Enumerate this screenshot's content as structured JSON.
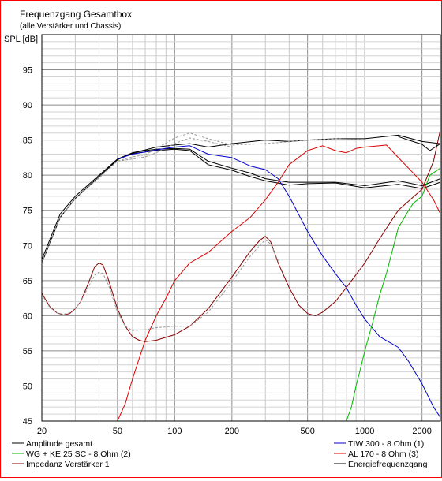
{
  "chart_data": {
    "type": "line",
    "title": "Frequenzgang Gesamtbox",
    "subtitle": "(alle Verstärker und Chassis)",
    "ylabel": "SPL [dB]",
    "xlabel": "",
    "x_scale": "log",
    "xlim": [
      20,
      2500
    ],
    "ylim": [
      45,
      100
    ],
    "x_ticks": [
      20,
      50,
      100,
      200,
      500,
      1000,
      2000
    ],
    "x_tick_labels": [
      "20",
      "50",
      "100",
      "200",
      "500",
      "1000",
      "2000"
    ],
    "y_ticks": [
      45,
      50,
      55,
      60,
      65,
      70,
      75,
      80,
      85,
      90,
      95
    ],
    "y_tick_labels": [
      "45",
      "50",
      "55",
      "60",
      "65",
      "70",
      "75",
      "80",
      "85",
      "90",
      "95"
    ],
    "grid": true,
    "legend_position": "bottom",
    "series": [
      {
        "name": "Amplitude gesamt",
        "color": "#000000",
        "dashed": false,
        "x": [
          20,
          25,
          30,
          40,
          50,
          60,
          70,
          80,
          100,
          120,
          150,
          200,
          300,
          400,
          500,
          700,
          1000,
          1500,
          2000,
          2500
        ],
        "y": [
          68,
          74.5,
          77,
          80,
          82.3,
          83.2,
          83.6,
          84,
          84.3,
          84.5,
          84,
          84.5,
          85,
          84.8,
          85,
          85.2,
          85.2,
          85.7,
          84.8,
          84.5
        ]
      },
      {
        "name": "Amplitude gesamt",
        "color": "#000000",
        "dashed": false,
        "x": [
          20,
          25,
          30,
          40,
          50,
          60,
          70,
          80,
          100,
          120,
          150,
          200,
          250,
          300,
          400,
          500,
          700,
          1000,
          1500,
          2000,
          2500
        ],
        "y": [
          67.5,
          74,
          76.7,
          79.8,
          82.2,
          83.2,
          83.5,
          83.7,
          83.8,
          83.7,
          82,
          81,
          80.3,
          79.5,
          79,
          79,
          79,
          78.5,
          79.2,
          78.5,
          79.5
        ]
      },
      {
        "name": "Amplitude gesamt",
        "color": "#000000",
        "dashed": false,
        "x": [
          20,
          25,
          30,
          40,
          50,
          60,
          70,
          80,
          100,
          120,
          150,
          200,
          250,
          300,
          400,
          500,
          700,
          1000,
          1500,
          2000,
          2500
        ],
        "y": [
          67.5,
          74,
          76.7,
          79.8,
          82.2,
          83.1,
          83.3,
          83.5,
          83.7,
          83.5,
          81.5,
          80.7,
          79.8,
          79.2,
          78.6,
          78.8,
          78.9,
          78.2,
          78.7,
          78.1,
          79
        ]
      },
      {
        "name": "Amplitude gesamt",
        "color": "#999999",
        "dashed": true,
        "x": [
          20,
          25,
          30,
          40,
          50,
          60,
          70,
          80,
          100,
          120,
          150,
          200,
          300,
          500,
          700,
          1000
        ],
        "y": [
          67.5,
          74,
          76.7,
          79.7,
          82,
          82.6,
          82.9,
          83.8,
          85.3,
          86,
          85.2,
          84.3,
          84.5,
          85,
          85.2,
          85
        ]
      },
      {
        "name": "Amplitude gesamt",
        "color": "#999999",
        "dashed": true,
        "x": [
          20,
          25,
          30,
          40,
          50,
          60,
          70,
          80,
          100,
          120,
          150,
          200
        ],
        "y": [
          67.5,
          74,
          76.7,
          79.6,
          82,
          82.3,
          82.6,
          83.2,
          84.5,
          85.3,
          84.8,
          84
        ]
      },
      {
        "name": "TIW 300 - 8 Ohm (1)",
        "color": "#0000cc",
        "dashed": false,
        "x": [
          50,
          60,
          70,
          80,
          100,
          120,
          150,
          200,
          250,
          300,
          350,
          400,
          500,
          600,
          700,
          800,
          900,
          1000,
          1200,
          1500,
          1700,
          2000,
          2300,
          2500
        ],
        "y": [
          82.3,
          83,
          83.3,
          83.6,
          84,
          84.2,
          83,
          82.5,
          81.3,
          80.8,
          79.5,
          77,
          72,
          68.5,
          66,
          64,
          61.5,
          59.5,
          57,
          55.5,
          53.5,
          50.3,
          47,
          45.5
        ]
      },
      {
        "name": "WG + KE 25 SC - 8 Ohm (2)",
        "color": "#00bb00",
        "dashed": false,
        "x": [
          20,
          800,
          850,
          900,
          950,
          1000,
          1100,
          1200,
          1300,
          1500,
          1700,
          1800,
          2000,
          2200,
          2500
        ],
        "y": [
          45,
          45,
          47,
          50,
          52.5,
          55,
          59,
          63,
          66,
          72.5,
          75,
          76,
          77,
          80,
          81
        ]
      },
      {
        "name": "AL 170 - 8 Ohm (3)",
        "color": "#dd0000",
        "dashed": false,
        "x": [
          50,
          55,
          60,
          70,
          80,
          90,
          100,
          120,
          150,
          200,
          250,
          300,
          350,
          400,
          500,
          600,
          700,
          800,
          900,
          1000,
          1200,
          1300,
          1500,
          1700,
          2000,
          2300,
          2500
        ],
        "y": [
          45,
          47.5,
          51,
          56.5,
          60,
          62.5,
          65,
          67.5,
          69,
          72,
          74,
          76.5,
          79,
          81.5,
          83.5,
          84.2,
          83.5,
          83.2,
          83.8,
          84,
          84.2,
          84.3,
          82.5,
          81,
          79,
          76.5,
          74.5
        ]
      },
      {
        "name": "Impedanz Verstärker 1",
        "color": "#880000",
        "dashed": false,
        "x": [
          20,
          22,
          24,
          26,
          28,
          30,
          32,
          35,
          38,
          40,
          42,
          45,
          50,
          55,
          60,
          65,
          70,
          80,
          100,
          120,
          150,
          200,
          250,
          280,
          300,
          320,
          350,
          400,
          450,
          500,
          550,
          600,
          700,
          800,
          1000,
          1200,
          1500,
          2000,
          2300,
          2500
        ],
        "y": [
          63.2,
          61.3,
          60.4,
          60.1,
          60.3,
          61,
          62,
          64.5,
          67,
          67.5,
          67.2,
          65,
          61,
          58.5,
          57,
          56.5,
          56.3,
          56.5,
          57.3,
          58.5,
          61,
          65.5,
          69.2,
          70.7,
          71.3,
          70.5,
          67.5,
          64,
          61.5,
          60.3,
          60,
          60.5,
          62,
          64,
          67.5,
          71,
          75,
          78,
          82,
          86.5
        ]
      },
      {
        "name": "Impedanz Verstärker 1",
        "color": "#999999",
        "dashed": true,
        "x": [
          20,
          22,
          24,
          26,
          28,
          30,
          32,
          35,
          38,
          40,
          42,
          45,
          50,
          55,
          60,
          70,
          80,
          100,
          120,
          150,
          200,
          250,
          280,
          300,
          320,
          350
        ],
        "y": [
          63,
          61.2,
          60.4,
          60.2,
          60.4,
          61,
          62,
          64,
          65.8,
          66.2,
          66,
          64.3,
          60.5,
          58.5,
          57.9,
          58,
          58.3,
          58.5,
          58.5,
          60.5,
          64.8,
          68.5,
          70,
          70.8,
          70.2,
          67.8
        ]
      },
      {
        "name": "Energiefrequenzgang",
        "color": "#000000",
        "dashed": false,
        "x": [
          1500,
          1700,
          2000,
          2200,
          2500
        ],
        "y": [
          85.5,
          85,
          84.4,
          83.5,
          84.5
        ]
      }
    ],
    "legend": [
      {
        "label": "Amplitude gesamt",
        "color": "#000000"
      },
      {
        "label": "WG + KE 25 SC - 8 Ohm (2)",
        "color": "#00bb00"
      },
      {
        "label": "Impedanz Verstärker 1",
        "color": "#880000"
      },
      {
        "label": "TIW 300 - 8 Ohm (1)",
        "color": "#0000cc"
      },
      {
        "label": "AL 170 - 8 Ohm (3)",
        "color": "#dd0000"
      },
      {
        "label": "Energiefrequenzgang",
        "color": "#000000"
      }
    ]
  }
}
